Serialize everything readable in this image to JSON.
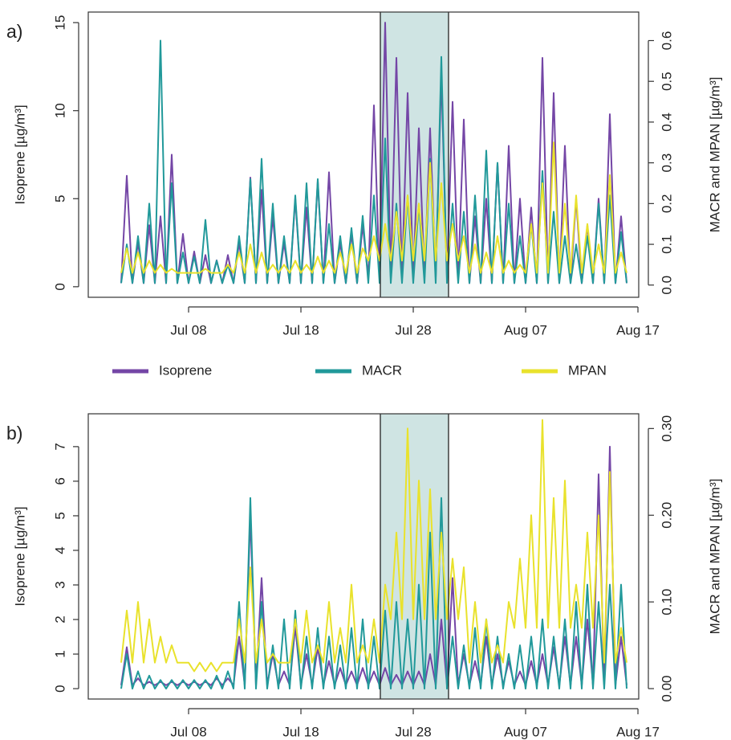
{
  "chart_data": [
    {
      "type": "line",
      "label": "a)",
      "ylabel": "Isoprene [µg/m³]",
      "y2label": "MACR and MPAN [µg/m³]",
      "xlim": [
        -0.93,
        48.07
      ],
      "xticks": [
        {
          "value": 8,
          "label": "Jul 08"
        },
        {
          "value": 18,
          "label": "Jul 18"
        },
        {
          "value": 28,
          "label": "Jul 28"
        },
        {
          "value": 38,
          "label": "Aug 07"
        },
        {
          "value": 48,
          "label": "Aug 17"
        }
      ],
      "ylim": [
        -0.6,
        15.6
      ],
      "yticks": [
        0,
        5,
        10,
        15
      ],
      "y2lim": [
        -0.03,
        0.67
      ],
      "y2ticks": [
        {
          "value": 0,
          "label": "0.0"
        },
        {
          "value": 0.1,
          "label": "0.1"
        },
        {
          "value": 0.2,
          "label": "0.2"
        },
        {
          "value": 0.3,
          "label": "0.3"
        },
        {
          "value": 0.4,
          "label": "0.4"
        },
        {
          "value": 0.5,
          "label": "0.5"
        },
        {
          "value": 0.6,
          "label": "0.6"
        }
      ],
      "shaded_span": [
        25.07,
        31.14
      ],
      "shade_color": "#cfe4e3",
      "x": [
        2,
        2.5,
        3,
        3.5,
        4,
        4.5,
        5,
        5.5,
        6,
        6.5,
        7,
        7.5,
        8,
        8.5,
        9,
        9.5,
        10,
        10.5,
        11,
        11.5,
        12,
        12.5,
        13,
        13.5,
        14,
        14.5,
        15,
        15.5,
        16,
        16.5,
        17,
        17.5,
        18,
        18.5,
        19,
        19.5,
        20,
        20.5,
        21,
        21.5,
        22,
        22.5,
        23,
        23.5,
        24,
        24.5,
        25,
        25.5,
        26,
        26.5,
        27,
        27.5,
        28,
        28.5,
        29,
        29.5,
        30,
        30.5,
        31,
        31.5,
        32,
        32.5,
        33,
        33.5,
        34,
        34.5,
        35,
        35.5,
        36,
        36.5,
        37,
        37.5,
        38,
        38.5,
        39,
        39.5,
        40,
        40.5,
        41,
        41.5,
        42,
        42.5,
        43,
        43.5,
        44,
        44.5,
        45,
        45.5,
        46,
        46.5,
        47
      ],
      "series": [
        {
          "name": "Isoprene",
          "color": "#7446a6",
          "axis": "y",
          "values": [
            0.2,
            6.3,
            0.2,
            2.5,
            0.2,
            3.5,
            0.2,
            4,
            0.2,
            7.5,
            0.2,
            3,
            0.2,
            2,
            0.2,
            1.8,
            0.2,
            1.5,
            0.2,
            1.8,
            0.2,
            2.5,
            0.2,
            6.2,
            0.2,
            5.5,
            0.2,
            4,
            0.2,
            2.5,
            0.2,
            5,
            0.2,
            4.5,
            0.2,
            6,
            0.2,
            6.5,
            0.2,
            2.5,
            0.2,
            3,
            0.2,
            3.5,
            0.5,
            10.3,
            0.5,
            15,
            0.5,
            13,
            0.5,
            11,
            0.5,
            9,
            0.5,
            9,
            0.5,
            12,
            0.5,
            10.5,
            0.5,
            9.5,
            0.2,
            4,
            0.2,
            5,
            0.2,
            7,
            0.2,
            8,
            0.2,
            5,
            0.2,
            4.5,
            0.2,
            13,
            0.2,
            11,
            0.2,
            8,
            0.2,
            5,
            0.2,
            3.5,
            0.2,
            5,
            0.2,
            9.8,
            0.2,
            4,
            0.2
          ]
        },
        {
          "name": "MACR",
          "color": "#21999a",
          "axis": "y2",
          "values": [
            0.005,
            0.1,
            0.005,
            0.12,
            0.005,
            0.2,
            0.005,
            0.6,
            0.005,
            0.25,
            0.005,
            0.08,
            0.005,
            0.07,
            0.005,
            0.16,
            0.005,
            0.06,
            0.005,
            0.05,
            0.005,
            0.12,
            0.005,
            0.26,
            0.005,
            0.31,
            0.005,
            0.2,
            0.005,
            0.12,
            0.005,
            0.22,
            0.005,
            0.25,
            0.005,
            0.26,
            0.005,
            0.15,
            0.005,
            0.12,
            0.005,
            0.14,
            0.005,
            0.17,
            0.005,
            0.22,
            0.005,
            0.36,
            0.005,
            0.2,
            0.005,
            0.22,
            0.005,
            0.2,
            0.005,
            0.31,
            0.005,
            0.56,
            0.005,
            0.2,
            0.005,
            0.18,
            0.005,
            0.22,
            0.005,
            0.33,
            0.005,
            0.3,
            0.005,
            0.2,
            0.005,
            0.12,
            0.005,
            0.15,
            0.005,
            0.28,
            0.005,
            0.18,
            0.005,
            0.12,
            0.005,
            0.1,
            0.005,
            0.12,
            0.005,
            0.2,
            0.005,
            0.22,
            0.005,
            0.13,
            0.005
          ]
        },
        {
          "name": "MPAN",
          "color": "#e9e22c",
          "axis": "y2",
          "values": [
            0.03,
            0.09,
            0.03,
            0.08,
            0.03,
            0.06,
            0.03,
            0.05,
            0.03,
            0.04,
            0.03,
            0.03,
            0.03,
            0.03,
            0.03,
            0.04,
            0.03,
            0.03,
            0.03,
            0.05,
            0.03,
            0.08,
            0.03,
            0.1,
            0.03,
            0.08,
            0.03,
            0.05,
            0.03,
            0.05,
            0.03,
            0.06,
            0.03,
            0.05,
            0.03,
            0.07,
            0.03,
            0.06,
            0.03,
            0.08,
            0.03,
            0.1,
            0.03,
            0.09,
            0.06,
            0.12,
            0.06,
            0.15,
            0.06,
            0.18,
            0.06,
            0.22,
            0.06,
            0.2,
            0.06,
            0.3,
            0.06,
            0.25,
            0.06,
            0.15,
            0.06,
            0.12,
            0.03,
            0.1,
            0.03,
            0.08,
            0.03,
            0.12,
            0.03,
            0.06,
            0.03,
            0.05,
            0.03,
            0.15,
            0.03,
            0.25,
            0.03,
            0.35,
            0.03,
            0.2,
            0.03,
            0.22,
            0.03,
            0.15,
            0.03,
            0.1,
            0.03,
            0.27,
            0.03,
            0.08,
            0.03
          ]
        }
      ]
    },
    {
      "type": "line",
      "label": "b)",
      "ylabel": "Isoprene [µg/m³]",
      "y2label": "MACR and MPAN [µg/m³]",
      "xlim": [
        -0.93,
        48.07
      ],
      "xticks": [
        {
          "value": 8,
          "label": "Jul 08"
        },
        {
          "value": 18,
          "label": "Jul 18"
        },
        {
          "value": 28,
          "label": "Jul 28"
        },
        {
          "value": 38,
          "label": "Aug 07"
        },
        {
          "value": 48,
          "label": "Aug 17"
        }
      ],
      "ylim": [
        -0.3,
        7.95
      ],
      "yticks": [
        0,
        1,
        2,
        3,
        4,
        5,
        6,
        7
      ],
      "y2lim": [
        -0.012,
        0.317
      ],
      "y2ticks": [
        {
          "value": 0,
          "label": "0.00"
        },
        {
          "value": 0.1,
          "label": "0.10"
        },
        {
          "value": 0.2,
          "label": "0.20"
        },
        {
          "value": 0.3,
          "label": "0.30"
        }
      ],
      "shaded_span": [
        25.07,
        31.14
      ],
      "shade_color": "#cfe4e3",
      "x": [
        2,
        2.5,
        3,
        3.5,
        4,
        4.5,
        5,
        5.5,
        6,
        6.5,
        7,
        7.5,
        8,
        8.5,
        9,
        9.5,
        10,
        10.5,
        11,
        11.5,
        12,
        12.5,
        13,
        13.5,
        14,
        14.5,
        15,
        15.5,
        16,
        16.5,
        17,
        17.5,
        18,
        18.5,
        19,
        19.5,
        20,
        20.5,
        21,
        21.5,
        22,
        22.5,
        23,
        23.5,
        24,
        24.5,
        25,
        25.5,
        26,
        26.5,
        27,
        27.5,
        28,
        28.5,
        29,
        29.5,
        30,
        30.5,
        31,
        31.5,
        32,
        32.5,
        33,
        33.5,
        34,
        34.5,
        35,
        35.5,
        36,
        36.5,
        37,
        37.5,
        38,
        38.5,
        39,
        39.5,
        40,
        40.5,
        41,
        41.5,
        42,
        42.5,
        43,
        43.5,
        44,
        44.5,
        45,
        45.5,
        46,
        46.5,
        47
      ],
      "series": [
        {
          "color": "#7446a6",
          "axis": "y",
          "values": [
            0.1,
            1.2,
            0.1,
            0.3,
            0.1,
            0.2,
            0.1,
            0.2,
            0.1,
            0.2,
            0.1,
            0.2,
            0.1,
            0.2,
            0.1,
            0.2,
            0.1,
            0.3,
            0.1,
            0.3,
            0.1,
            1.5,
            0.1,
            5,
            0.1,
            3.2,
            0.1,
            1,
            0.1,
            0.5,
            0.1,
            1.8,
            0.1,
            1,
            0.1,
            1.2,
            0.1,
            0.8,
            0.1,
            0.6,
            0.1,
            0.5,
            0.1,
            0.6,
            0.1,
            0.5,
            0.1,
            0.6,
            0.1,
            0.4,
            0.1,
            0.5,
            0.1,
            0.5,
            0.1,
            1,
            0.1,
            2,
            0.1,
            3.2,
            0.1,
            1,
            0.1,
            0.8,
            0.1,
            1.5,
            0.1,
            1,
            0.1,
            0.8,
            0.1,
            0.5,
            0.1,
            0.8,
            0.1,
            1,
            0.1,
            1.2,
            0.1,
            1.5,
            0.1,
            1.5,
            0.1,
            2,
            0.1,
            6.2,
            0.1,
            7,
            0.1,
            1.5,
            0.1
          ]
        },
        {
          "color": "#21999a",
          "axis": "y2",
          "values": [
            0,
            0.04,
            0,
            0.02,
            0,
            0.015,
            0,
            0.01,
            0,
            0.01,
            0,
            0.01,
            0,
            0.01,
            0,
            0.01,
            0,
            0.015,
            0,
            0.02,
            0,
            0.1,
            0,
            0.22,
            0,
            0.1,
            0,
            0.05,
            0,
            0.08,
            0,
            0.09,
            0,
            0.06,
            0,
            0.07,
            0,
            0.06,
            0,
            0.05,
            0,
            0.07,
            0,
            0.08,
            0,
            0.06,
            0,
            0.09,
            0,
            0.1,
            0,
            0.08,
            0,
            0.12,
            0,
            0.18,
            0,
            0.22,
            0,
            0.06,
            0,
            0.05,
            0,
            0.07,
            0,
            0.08,
            0,
            0.06,
            0,
            0.04,
            0,
            0.05,
            0,
            0.06,
            0,
            0.08,
            0,
            0.06,
            0,
            0.08,
            0,
            0.1,
            0,
            0.12,
            0,
            0.1,
            0,
            0.12,
            0,
            0.12,
            0
          ]
        },
        {
          "color": "#e9e22c",
          "axis": "y2",
          "values": [
            0.03,
            0.09,
            0.03,
            0.1,
            0.03,
            0.08,
            0.03,
            0.06,
            0.03,
            0.05,
            0.03,
            0.03,
            0.03,
            0.02,
            0.03,
            0.02,
            0.03,
            0.02,
            0.03,
            0.03,
            0.03,
            0.08,
            0.03,
            0.14,
            0.03,
            0.08,
            0.03,
            0.04,
            0.03,
            0.03,
            0.03,
            0.08,
            0.03,
            0.09,
            0.03,
            0.05,
            0.03,
            0.1,
            0.03,
            0.07,
            0.03,
            0.12,
            0.03,
            0.05,
            0.03,
            0.08,
            0.03,
            0.12,
            0.08,
            0.18,
            0.08,
            0.3,
            0.08,
            0.24,
            0.08,
            0.23,
            0.08,
            0.18,
            0.08,
            0.15,
            0.08,
            0.14,
            0.03,
            0.1,
            0.03,
            0.08,
            0.03,
            0.05,
            0.03,
            0.1,
            0.07,
            0.15,
            0.07,
            0.2,
            0.07,
            0.31,
            0.07,
            0.22,
            0.07,
            0.24,
            0.07,
            0.12,
            0.07,
            0.18,
            0.07,
            0.2,
            0.03,
            0.25,
            0.03,
            0.07,
            0.03
          ]
        }
      ]
    }
  ]
}
